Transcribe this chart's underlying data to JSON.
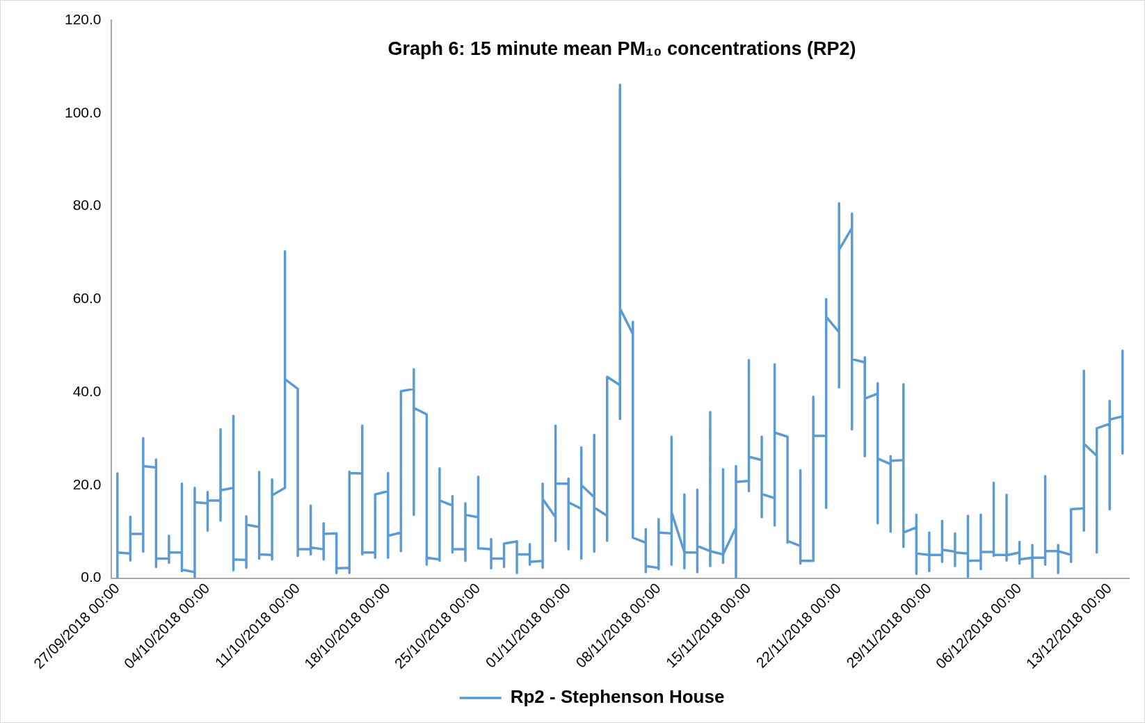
{
  "chart_data": {
    "type": "line",
    "title": "Graph 6: 15 minute mean PM₁₀ concentrations (RP2)",
    "xlim": [
      "2018-09-26T12:00",
      "2018-12-14T12:00"
    ],
    "xticks": [
      {
        "value": "2018-09-27",
        "label": "27/09/2018 00:00"
      },
      {
        "value": "2018-10-04",
        "label": "04/10/2018 00:00"
      },
      {
        "value": "2018-10-11",
        "label": "11/10/2018 00:00"
      },
      {
        "value": "2018-10-18",
        "label": "18/10/2018 00:00"
      },
      {
        "value": "2018-10-25",
        "label": "25/10/2018 00:00"
      },
      {
        "value": "2018-11-01",
        "label": "01/11/2018 00:00"
      },
      {
        "value": "2018-11-08",
        "label": "08/11/2018 00:00"
      },
      {
        "value": "2018-11-15",
        "label": "15/11/2018 00:00"
      },
      {
        "value": "2018-11-22",
        "label": "22/11/2018 00:00"
      },
      {
        "value": "2018-11-29",
        "label": "29/11/2018 00:00"
      },
      {
        "value": "2018-12-06",
        "label": "06/12/2018 00:00"
      },
      {
        "value": "2018-12-13",
        "label": "13/12/2018 00:00"
      }
    ],
    "ylim": [
      0,
      120
    ],
    "yticks": [
      {
        "value": 0,
        "label": "0.0"
      },
      {
        "value": 20,
        "label": "20.0"
      },
      {
        "value": 40,
        "label": "40.0"
      },
      {
        "value": 60,
        "label": "60.0"
      },
      {
        "value": 80,
        "label": "80.0"
      },
      {
        "value": 100,
        "label": "100.0"
      },
      {
        "value": 120,
        "label": "120.0"
      }
    ],
    "grid": false,
    "legend": "bottom",
    "marker": "none",
    "line_style": "solid",
    "series": [
      {
        "name": "Rp2 - Stephenson House",
        "color": "#5b9bd5",
        "x": [
          "2018-09-27",
          "2018-09-27",
          "2018-09-27",
          "2018-09-28",
          "2018-09-28",
          "2018-09-28",
          "2018-09-28",
          "2018-09-29",
          "2018-09-29",
          "2018-09-29",
          "2018-09-29",
          "2018-09-30",
          "2018-09-30",
          "2018-09-30",
          "2018-09-30",
          "2018-10-01",
          "2018-10-01",
          "2018-10-01",
          "2018-10-01",
          "2018-10-02",
          "2018-10-02",
          "2018-10-02",
          "2018-10-02",
          "2018-10-03",
          "2018-10-03",
          "2018-10-03",
          "2018-10-03",
          "2018-10-04",
          "2018-10-04",
          "2018-10-04",
          "2018-10-04",
          "2018-10-05",
          "2018-10-05",
          "2018-10-05",
          "2018-10-05",
          "2018-10-06",
          "2018-10-06",
          "2018-10-06",
          "2018-10-06",
          "2018-10-07",
          "2018-10-07",
          "2018-10-07",
          "2018-10-07",
          "2018-10-08",
          "2018-10-08",
          "2018-10-08",
          "2018-10-08",
          "2018-10-09",
          "2018-10-09",
          "2018-10-09",
          "2018-10-09",
          "2018-10-10",
          "2018-10-10",
          "2018-10-10",
          "2018-10-11",
          "2018-10-11",
          "2018-10-11",
          "2018-10-12",
          "2018-10-12",
          "2018-10-12",
          "2018-10-12",
          "2018-10-13",
          "2018-10-13",
          "2018-10-13",
          "2018-10-13",
          "2018-10-14",
          "2018-10-14",
          "2018-10-14",
          "2018-10-15",
          "2018-10-15",
          "2018-10-15",
          "2018-10-15",
          "2018-10-16",
          "2018-10-16",
          "2018-10-16",
          "2018-10-16",
          "2018-10-17",
          "2018-10-17",
          "2018-10-17",
          "2018-10-17",
          "2018-10-18",
          "2018-10-18",
          "2018-10-18",
          "2018-10-18",
          "2018-10-19",
          "2018-10-19",
          "2018-10-19",
          "2018-10-20",
          "2018-10-20",
          "2018-10-20",
          "2018-10-20",
          "2018-10-21",
          "2018-10-21",
          "2018-10-21",
          "2018-10-22",
          "2018-10-22",
          "2018-10-22",
          "2018-10-22",
          "2018-10-23",
          "2018-10-23",
          "2018-10-23",
          "2018-10-23",
          "2018-10-24",
          "2018-10-24",
          "2018-10-24",
          "2018-10-24",
          "2018-10-25",
          "2018-10-25",
          "2018-10-25",
          "2018-10-26",
          "2018-10-26",
          "2018-10-26",
          "2018-10-26",
          "2018-10-27",
          "2018-10-27",
          "2018-10-27",
          "2018-10-28",
          "2018-10-28",
          "2018-10-28",
          "2018-10-29",
          "2018-10-29",
          "2018-10-29",
          "2018-10-29",
          "2018-10-30",
          "2018-10-30",
          "2018-10-30",
          "2018-10-30",
          "2018-10-31",
          "2018-10-31",
          "2018-10-31",
          "2018-10-31",
          "2018-11-01",
          "2018-11-01",
          "2018-11-01",
          "2018-11-01",
          "2018-11-02",
          "2018-11-02",
          "2018-11-02",
          "2018-11-02",
          "2018-11-03",
          "2018-11-03",
          "2018-11-03",
          "2018-11-03",
          "2018-11-04",
          "2018-11-04",
          "2018-11-04",
          "2018-11-05",
          "2018-11-05",
          "2018-11-05",
          "2018-11-05",
          "2018-11-06",
          "2018-11-06",
          "2018-11-06",
          "2018-11-07",
          "2018-11-07",
          "2018-11-07",
          "2018-11-07",
          "2018-11-08",
          "2018-11-08",
          "2018-11-08",
          "2018-11-08",
          "2018-11-09",
          "2018-11-09",
          "2018-11-09",
          "2018-11-09",
          "2018-11-10",
          "2018-11-10",
          "2018-11-10",
          "2018-11-10",
          "2018-11-11",
          "2018-11-11",
          "2018-11-11",
          "2018-11-11",
          "2018-11-12",
          "2018-11-12",
          "2018-11-12",
          "2018-11-12",
          "2018-11-13",
          "2018-11-13",
          "2018-11-13",
          "2018-11-13",
          "2018-11-14",
          "2018-11-14",
          "2018-11-14",
          "2018-11-14",
          "2018-11-15",
          "2018-11-15",
          "2018-11-15",
          "2018-11-15",
          "2018-11-16",
          "2018-11-16",
          "2018-11-16",
          "2018-11-16",
          "2018-11-17",
          "2018-11-17",
          "2018-11-17",
          "2018-11-17",
          "2018-11-18",
          "2018-11-18",
          "2018-11-18",
          "2018-11-19",
          "2018-11-19",
          "2018-11-19",
          "2018-11-19",
          "2018-11-20",
          "2018-11-20",
          "2018-11-20",
          "2018-11-21",
          "2018-11-21",
          "2018-11-21",
          "2018-11-21",
          "2018-11-22",
          "2018-11-22",
          "2018-11-22",
          "2018-11-22",
          "2018-11-23",
          "2018-11-23",
          "2018-11-23",
          "2018-11-23",
          "2018-11-24",
          "2018-11-24",
          "2018-11-24",
          "2018-11-24",
          "2018-11-25",
          "2018-11-25",
          "2018-11-25",
          "2018-11-25",
          "2018-11-26",
          "2018-11-26",
          "2018-11-26",
          "2018-11-26",
          "2018-11-27",
          "2018-11-27",
          "2018-11-27",
          "2018-11-27",
          "2018-11-28",
          "2018-11-28",
          "2018-11-28",
          "2018-11-28",
          "2018-11-29",
          "2018-11-29",
          "2018-11-29",
          "2018-11-29",
          "2018-11-30",
          "2018-11-30",
          "2018-11-30",
          "2018-11-30",
          "2018-12-01",
          "2018-12-01",
          "2018-12-01",
          "2018-12-01",
          "2018-12-02",
          "2018-12-02",
          "2018-12-02",
          "2018-12-02",
          "2018-12-03",
          "2018-12-03",
          "2018-12-03",
          "2018-12-03",
          "2018-12-04",
          "2018-12-04",
          "2018-12-04",
          "2018-12-04",
          "2018-12-05",
          "2018-12-05",
          "2018-12-05",
          "2018-12-05",
          "2018-12-06",
          "2018-12-06",
          "2018-12-06",
          "2018-12-06",
          "2018-12-07",
          "2018-12-07",
          "2018-12-07",
          "2018-12-07",
          "2018-12-08",
          "2018-12-08",
          "2018-12-08",
          "2018-12-08",
          "2018-12-09",
          "2018-12-09",
          "2018-12-09",
          "2018-12-09",
          "2018-12-10",
          "2018-12-10",
          "2018-12-10",
          "2018-12-10",
          "2018-12-11",
          "2018-12-11",
          "2018-12-11",
          "2018-12-11",
          "2018-12-12",
          "2018-12-12",
          "2018-12-12",
          "2018-12-13",
          "2018-12-13",
          "2018-12-13",
          "2018-12-13",
          "2018-12-14",
          "2018-12-14",
          "2018-12-14"
        ],
        "values": [
          22.5,
          0,
          5.5,
          5.3,
          3.8,
          13.2,
          9.5,
          9.5,
          5.7,
          30.1,
          24.1,
          23.8,
          25.5,
          2.4,
          4.2,
          4.2,
          3.3,
          9.1,
          5.5,
          5.5,
          20.3,
          1.5,
          1.8,
          1.3,
          0,
          19.4,
          16.3,
          16.1,
          10.2,
          18.5,
          16.7,
          16.7,
          12.4,
          32.0,
          18.9,
          19.4,
          34.9,
          1.7,
          4.0,
          3.9,
          2.2,
          13.3,
          11.5,
          11.0,
          22.8,
          4.2,
          5.1,
          5.0,
          4.0,
          21.2,
          17.8,
          19.4,
          70.3,
          42.8,
          40.7,
          4.8,
          6.2,
          6.2,
          15.6,
          5.1,
          6.6,
          6.2,
          4.0,
          11.8,
          9.5,
          9.6,
          1.1,
          2.1,
          2.2,
          1.1,
          22.9,
          22.6,
          22.5,
          32.8,
          5.1,
          5.5,
          5.5,
          4.4,
          17.8,
          18.0,
          18.7,
          22.6,
          4.4,
          9.1,
          9.8,
          5.8,
          40.2,
          40.7,
          44.9,
          13.6,
          36.6,
          35.2,
          2.9,
          4.4,
          4.0,
          3.7,
          23.6,
          16.7,
          15.6,
          17.6,
          5.5,
          6.2,
          6.2,
          3.7,
          16.1,
          13.6,
          13.1,
          21.8,
          6.4,
          6.2,
          8.4,
          2.1,
          4.2,
          4.2,
          2.4,
          7.4,
          7.9,
          1.1,
          5.1,
          5.1,
          7.3,
          2.9,
          3.5,
          3.7,
          2.2,
          20.3,
          17.0,
          13.1,
          8.0,
          32.8,
          20.3,
          20.3,
          21.4,
          6.2,
          16.3,
          14.9,
          4.2,
          28.1,
          20.0,
          17.4,
          30.8,
          5.7,
          15.2,
          13.4,
          8.0,
          43.3,
          41.5,
          34.2,
          106.1,
          58.0,
          52.5,
          55.1,
          8.7,
          7.6,
          10.5,
          1.3,
          2.6,
          2.2,
          1.9,
          12.7,
          9.8,
          9.6,
          2.9,
          30.4,
          14.2,
          5.5,
          2.1,
          18.0,
          5.5,
          5.5,
          1.3,
          19.0,
          6.9,
          5.8,
          35.7,
          2.6,
          5.8,
          5.1,
          23.4,
          3.3,
          5.1,
          10.9,
          0,
          24.1,
          20.7,
          20.9,
          18.7,
          46.9,
          26.1,
          25.4,
          30.4,
          13.1,
          18.1,
          17.2,
          11.3,
          46.0,
          31.3,
          30.4,
          7.6,
          8.0,
          6.9,
          23.2,
          3.1,
          3.7,
          3.7,
          39.0,
          30.6,
          30.6,
          15.1,
          60.0,
          56.2,
          52.9,
          41.0,
          80.6,
          70.6,
          75.3,
          78.4,
          32.0,
          47.1,
          46.4,
          47.5,
          26.2,
          38.6,
          39.7,
          41.9,
          11.8,
          25.7,
          24.5,
          26.2,
          10.0,
          25.2,
          25.4,
          41.7,
          6.7,
          9.8,
          10.9,
          13.6,
          0.9,
          5.3,
          5.0,
          9.8,
          1.5,
          5.0,
          5.0,
          12.3,
          3.5,
          6.1,
          5.7,
          9.6,
          2.6,
          5.5,
          5.3,
          13.4,
          0.2,
          3.7,
          3.8,
          1.9,
          13.6,
          5.6,
          5.6,
          20.5,
          4.8,
          5.0,
          5.0,
          17.9,
          3.8,
          4.9,
          5.5,
          7.8,
          3.1,
          4.0,
          4.4,
          7.1,
          0,
          4.4,
          4.4,
          21.9,
          2.9,
          5.8,
          5.8,
          7.1,
          1.1,
          5.8,
          5.0,
          3.5,
          14.7,
          14.8,
          15.0,
          10.2,
          44.6,
          28.9,
          26.3,
          5.5,
          32.2,
          33.2,
          38.1,
          14.8,
          34.1,
          34.8,
          48.9,
          26.8
        ]
      }
    ]
  }
}
